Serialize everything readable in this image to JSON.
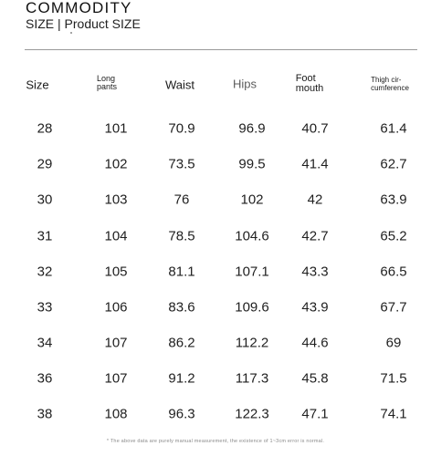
{
  "header": {
    "title": "COMMODITY",
    "subtitle": "SIZE | Product SIZE"
  },
  "table": {
    "columns": [
      {
        "line1": "Size",
        "line2": ""
      },
      {
        "line1": "Long",
        "line2": "pants"
      },
      {
        "line1": "Waist",
        "line2": ""
      },
      {
        "line1": "Hips",
        "line2": ""
      },
      {
        "line1": "Foot",
        "line2": "mouth"
      },
      {
        "line1": "Thigh cir-",
        "line2": "cumference"
      }
    ],
    "rows": [
      [
        "28",
        "101",
        "70.9",
        "96.9",
        "40.7",
        "61.4"
      ],
      [
        "29",
        "102",
        "73.5",
        "99.5",
        "41.4",
        "62.7"
      ],
      [
        "30",
        "103",
        "76",
        "102",
        "42",
        "63.9"
      ],
      [
        "31",
        "104",
        "78.5",
        "104.6",
        "42.7",
        "65.2"
      ],
      [
        "32",
        "105",
        "81.1",
        "107.1",
        "43.3",
        "66.5"
      ],
      [
        "33",
        "106",
        "83.6",
        "109.6",
        "43.9",
        "67.7"
      ],
      [
        "34",
        "107",
        "86.2",
        "112.2",
        "44.6",
        "69"
      ],
      [
        "36",
        "107",
        "91.2",
        "117.3",
        "45.8",
        "71.5"
      ],
      [
        "38",
        "108",
        "96.3",
        "122.3",
        "47.1",
        "74.1"
      ]
    ]
  },
  "footnote": "* The above data are purely manual measurement, the existence of 1~3cm error is normal."
}
